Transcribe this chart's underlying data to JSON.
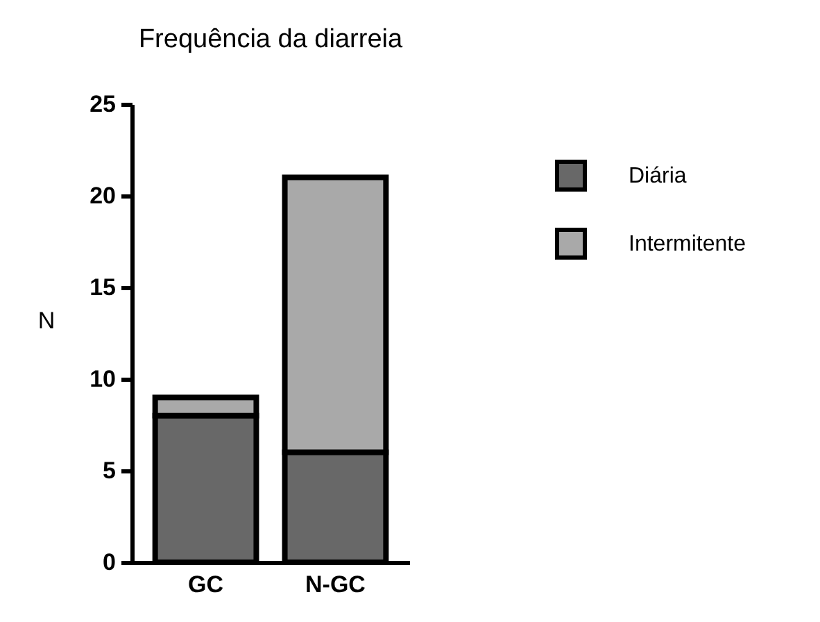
{
  "chart_data": {
    "type": "bar",
    "title": "Frequência da diarreia",
    "ylabel": "N",
    "categories": [
      "GC",
      "N-GC"
    ],
    "stacked": true,
    "series": [
      {
        "name": "Diária",
        "color": "#686868",
        "values": [
          8,
          6
        ]
      },
      {
        "name": "Intermitente",
        "color": "#a9a9a9",
        "values": [
          1,
          15
        ]
      }
    ],
    "ylim": [
      0,
      25
    ],
    "yticks": [
      0,
      5,
      10,
      15,
      20,
      25
    ],
    "grid": false,
    "legend": "top right"
  }
}
